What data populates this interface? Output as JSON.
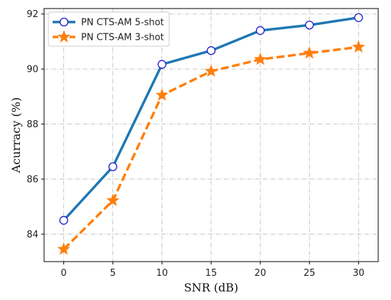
{
  "chart_data": {
    "type": "line",
    "x": [
      0,
      5,
      10,
      15,
      20,
      25,
      30
    ],
    "series": [
      {
        "name": "PN CTS-AM 5-shot",
        "values": [
          84.5,
          86.45,
          90.17,
          90.67,
          91.4,
          91.6,
          91.87
        ],
        "color": "#1f77b4",
        "marker": "circle",
        "line_style": "solid"
      },
      {
        "name": "PN CTS-AM 3-shot",
        "values": [
          83.45,
          85.22,
          89.05,
          89.92,
          90.35,
          90.58,
          90.8
        ],
        "color": "#ff7f0e",
        "marker": "star",
        "line_style": "dashed"
      }
    ],
    "xlabel": "SNR (dB)",
    "ylabel": "Acurracy (%)",
    "xlim": [
      -2,
      32
    ],
    "ylim": [
      83,
      92.2
    ],
    "xticks": [
      "0",
      "5",
      "10",
      "15",
      "20",
      "25",
      "30"
    ],
    "yticks": [
      "84",
      "86",
      "88",
      "90",
      "92"
    ],
    "grid": true,
    "legend_position": "top-left"
  }
}
